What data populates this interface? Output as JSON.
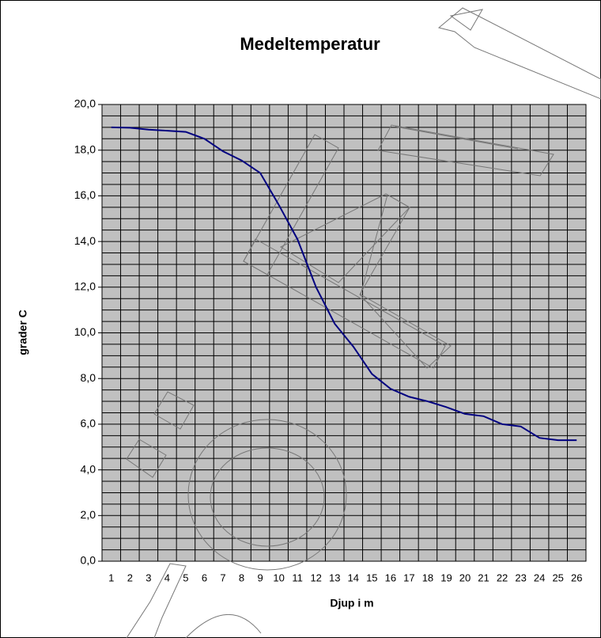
{
  "chart_data": {
    "type": "line",
    "title": "Medeltemperatur",
    "xlabel": "Djup i m",
    "ylabel": "grader C",
    "categories": [
      1,
      2,
      3,
      4,
      5,
      6,
      7,
      8,
      9,
      10,
      11,
      12,
      13,
      14,
      15,
      16,
      17,
      18,
      19,
      20,
      21,
      22,
      23,
      24,
      25,
      26
    ],
    "series": [
      {
        "name": "Medeltemperatur",
        "color": "#000080",
        "values": [
          19.0,
          18.98,
          18.9,
          18.85,
          18.8,
          18.5,
          17.95,
          17.55,
          17.0,
          15.6,
          14.1,
          12.0,
          10.4,
          9.4,
          8.2,
          7.55,
          7.2,
          7.0,
          6.75,
          6.45,
          6.35,
          6.0,
          5.9,
          5.4,
          5.3,
          5.3
        ]
      }
    ],
    "ylim": [
      0,
      20
    ],
    "yticks": [
      {
        "value": 0,
        "label": "0,0"
      },
      {
        "value": 2,
        "label": "2,0"
      },
      {
        "value": 4,
        "label": "4,0"
      },
      {
        "value": 6,
        "label": "6,0"
      },
      {
        "value": 8,
        "label": "8,0"
      },
      {
        "value": 10,
        "label": "10,0"
      },
      {
        "value": 12,
        "label": "12,0"
      },
      {
        "value": 14,
        "label": "14,0"
      },
      {
        "value": 16,
        "label": "16,0"
      },
      {
        "value": 18,
        "label": "18,0"
      },
      {
        "value": 20,
        "label": "20,0"
      }
    ],
    "grid": true,
    "background": "#c0c0c0"
  }
}
